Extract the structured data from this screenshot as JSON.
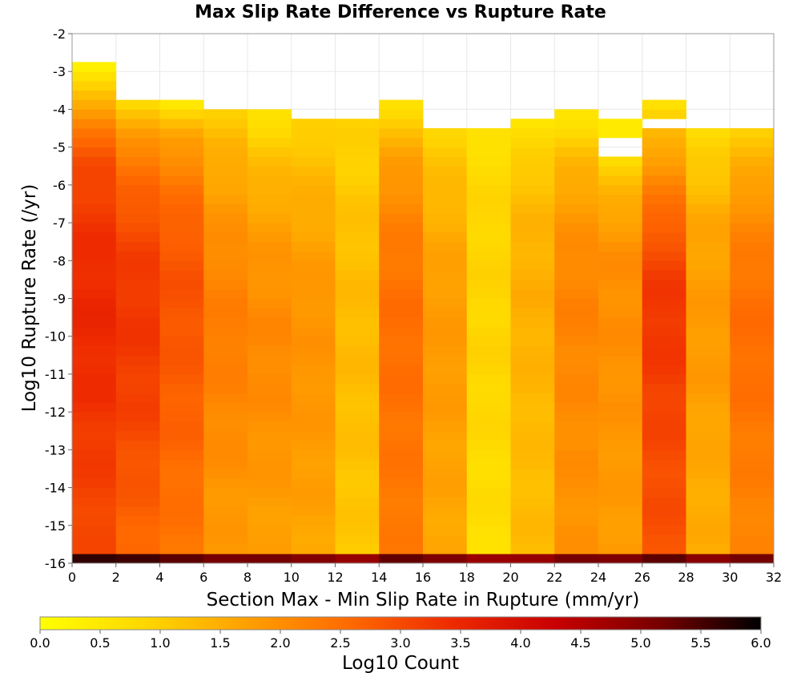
{
  "chart_data": {
    "type": "heatmap",
    "title": "Max Slip Rate Difference vs Rupture Rate",
    "xlabel": "Section Max - Min Slip Rate in Rupture (mm/yr)",
    "ylabel": "Log10 Rupture Rate (/yr)",
    "colorbar_label": "Log10 Count",
    "xlim": [
      0,
      32
    ],
    "ylim": [
      -16,
      -2
    ],
    "x_bin_width": 2,
    "y_bin_width": 0.25,
    "x_ticks": [
      "0",
      "2",
      "4",
      "6",
      "8",
      "10",
      "12",
      "14",
      "16",
      "18",
      "20",
      "22",
      "24",
      "26",
      "28",
      "30",
      "32"
    ],
    "y_ticks": [
      "-2",
      "-3",
      "-4",
      "-5",
      "-6",
      "-7",
      "-8",
      "-9",
      "-10",
      "-11",
      "-12",
      "-13",
      "-14",
      "-15",
      "-16"
    ],
    "colorbar_ticks": [
      "0.0",
      "0.5",
      "1.0",
      "1.5",
      "2.0",
      "2.5",
      "3.0",
      "3.5",
      "4.0",
      "4.5",
      "5.0",
      "5.5",
      "6.0"
    ],
    "color_range": [
      0,
      6
    ],
    "colormap": [
      "#ffff00",
      "#ffd800",
      "#ffa000",
      "#ff6a00",
      "#ee2a00",
      "#c80000",
      "#780000",
      "#000000"
    ],
    "columns": [
      {
        "x": [
          0,
          2
        ],
        "top": -2.75,
        "profile": [
          [
            -2.75,
            0.2
          ],
          [
            -3.5,
            1.0
          ],
          [
            -4.5,
            2.4
          ],
          [
            -5.5,
            3.0
          ],
          [
            -7,
            3.3
          ],
          [
            -9,
            3.5
          ],
          [
            -11,
            3.4
          ],
          [
            -13,
            3.2
          ],
          [
            -15.75,
            3.0
          ]
        ],
        "bottom": 5.6
      },
      {
        "x": [
          2,
          4
        ],
        "top": -3.75,
        "profile": [
          [
            -3.75,
            0.6
          ],
          [
            -4.75,
            2.0
          ],
          [
            -6,
            2.6
          ],
          [
            -7.5,
            3.1
          ],
          [
            -9.5,
            3.3
          ],
          [
            -12,
            3.1
          ],
          [
            -14,
            2.8
          ],
          [
            -15.75,
            2.6
          ]
        ],
        "bottom": 5.5
      },
      {
        "x": [
          4,
          6
        ],
        "top": -3.75,
        "profile": [
          [
            -3.75,
            0.4
          ],
          [
            -4.75,
            1.7
          ],
          [
            -6,
            2.4
          ],
          [
            -7.5,
            2.8
          ],
          [
            -9,
            2.9
          ],
          [
            -12,
            2.7
          ],
          [
            -14,
            2.5
          ],
          [
            -15.75,
            2.4
          ]
        ],
        "bottom": 5.4
      },
      {
        "x": [
          6,
          8
        ],
        "top": -4.0,
        "profile": [
          [
            -4.0,
            1.0
          ],
          [
            -5,
            1.4
          ],
          [
            -6.5,
            1.8
          ],
          [
            -8,
            2.1
          ],
          [
            -10,
            2.3
          ],
          [
            -12,
            2.1
          ],
          [
            -14,
            1.9
          ],
          [
            -15.75,
            1.8
          ]
        ],
        "bottom": 5.2
      },
      {
        "x": [
          8,
          10
        ],
        "top": -4.0,
        "profile": [
          [
            -4.0,
            0.6
          ],
          [
            -5,
            1.1
          ],
          [
            -6.5,
            1.6
          ],
          [
            -8,
            1.9
          ],
          [
            -10,
            2.1
          ],
          [
            -12,
            2.0
          ],
          [
            -14,
            1.8
          ],
          [
            -15.75,
            1.7
          ]
        ],
        "bottom": 5.1
      },
      {
        "x": [
          10,
          12
        ],
        "top": -4.25,
        "profile": [
          [
            -4.25,
            0.9
          ],
          [
            -5.5,
            1.3
          ],
          [
            -7,
            1.6
          ],
          [
            -9,
            1.9
          ],
          [
            -11,
            1.9
          ],
          [
            -13,
            1.8
          ],
          [
            -15.75,
            1.6
          ]
        ],
        "bottom": 5.0
      },
      {
        "x": [
          12,
          14
        ],
        "top": -4.25,
        "profile": [
          [
            -4.25,
            0.9
          ],
          [
            -5.5,
            1.0
          ],
          [
            -7,
            1.2
          ],
          [
            -9,
            1.3
          ],
          [
            -11,
            1.3
          ],
          [
            -13,
            1.2
          ],
          [
            -15.75,
            1.1
          ]
        ],
        "bottom": 4.9
      },
      {
        "x": [
          14,
          16
        ],
        "top": -3.75,
        "profile": [
          [
            -3.75,
            0.6
          ],
          [
            -4.5,
            1.2
          ],
          [
            -5.5,
            1.8
          ],
          [
            -7,
            2.2
          ],
          [
            -9,
            2.5
          ],
          [
            -11,
            2.5
          ],
          [
            -13,
            2.4
          ],
          [
            -15.75,
            2.3
          ]
        ],
        "bottom": 5.3
      },
      {
        "x": [
          16,
          18
        ],
        "top": -4.5,
        "profile": [
          [
            -4.5,
            0.9
          ],
          [
            -5.5,
            1.2
          ],
          [
            -7,
            1.5
          ],
          [
            -9,
            1.8
          ],
          [
            -11,
            1.8
          ],
          [
            -13,
            1.7
          ],
          [
            -15.75,
            1.6
          ]
        ],
        "bottom": 5.0
      },
      {
        "x": [
          18,
          20
        ],
        "top": -4.5,
        "profile": [
          [
            -4.5,
            0.6
          ],
          [
            -5.5,
            0.8
          ],
          [
            -7,
            0.9
          ],
          [
            -9,
            0.9
          ],
          [
            -11,
            0.9
          ],
          [
            -13,
            0.8
          ],
          [
            -15.75,
            0.7
          ]
        ],
        "bottom": 4.8
      },
      {
        "x": [
          20,
          22
        ],
        "top": -4.25,
        "profile": [
          [
            -4.25,
            0.5
          ],
          [
            -5.5,
            1.1
          ],
          [
            -7,
            1.4
          ],
          [
            -9,
            1.5
          ],
          [
            -11,
            1.4
          ],
          [
            -13,
            1.3
          ],
          [
            -15.75,
            1.3
          ]
        ],
        "bottom": 4.9
      },
      {
        "x": [
          22,
          24
        ],
        "top": -3.75,
        "profile": [
          [
            -3.75,
            0.5
          ],
          [
            -4.5,
            0.8
          ],
          [
            -5.5,
            1.4
          ],
          [
            -7,
            1.9
          ],
          [
            -9,
            2.2
          ],
          [
            -11,
            2.1
          ],
          [
            -13,
            2.0
          ],
          [
            -15.75,
            1.9
          ]
        ],
        "bottom": 5.1
      },
      {
        "x": [
          24,
          26
        ],
        "top": -4.25,
        "profile": [
          [
            -4.25,
            0.4
          ],
          [
            -5.25,
            0.7
          ],
          [
            -6.5,
            1.6
          ],
          [
            -8,
            2.0
          ],
          [
            -10,
            2.0
          ],
          [
            -12,
            1.9
          ],
          [
            -14,
            1.8
          ],
          [
            -15.75,
            1.8
          ]
        ],
        "bottom": 5.0
      },
      {
        "x": [
          26,
          28
        ],
        "top": -3.75,
        "profile": [
          [
            -3.75,
            0.6
          ],
          [
            -4.75,
            1.4
          ],
          [
            -6,
            2.2
          ],
          [
            -7.5,
            2.9
          ],
          [
            -9,
            3.3
          ],
          [
            -11,
            3.2
          ],
          [
            -13,
            3.0
          ],
          [
            -15.75,
            2.9
          ]
        ],
        "bottom": 5.4
      },
      {
        "x": [
          28,
          30
        ],
        "top": -4.5,
        "profile": [
          [
            -4.5,
            0.7
          ],
          [
            -5.5,
            1.1
          ],
          [
            -7,
            1.6
          ],
          [
            -9,
            1.8
          ],
          [
            -11,
            1.8
          ],
          [
            -13,
            1.6
          ],
          [
            -15.75,
            1.5
          ]
        ],
        "bottom": 5.0
      },
      {
        "x": [
          30,
          32
        ],
        "top": -4.5,
        "profile": [
          [
            -4.5,
            1.0
          ],
          [
            -5.5,
            1.5
          ],
          [
            -7,
            2.1
          ],
          [
            -9,
            2.5
          ],
          [
            -11,
            2.5
          ],
          [
            -13,
            2.3
          ],
          [
            -15.75,
            2.1
          ]
        ],
        "bottom": 5.1
      }
    ],
    "empty_bins": [
      {
        "x": [
          22,
          24
        ],
        "y": [
          -4.0,
          -3.75
        ]
      },
      {
        "x": [
          24,
          26
        ],
        "y": [
          -5.25,
          -4.75
        ]
      },
      {
        "x": [
          26,
          28
        ],
        "y": [
          -4.5,
          -4.25
        ]
      }
    ],
    "grid": true
  }
}
